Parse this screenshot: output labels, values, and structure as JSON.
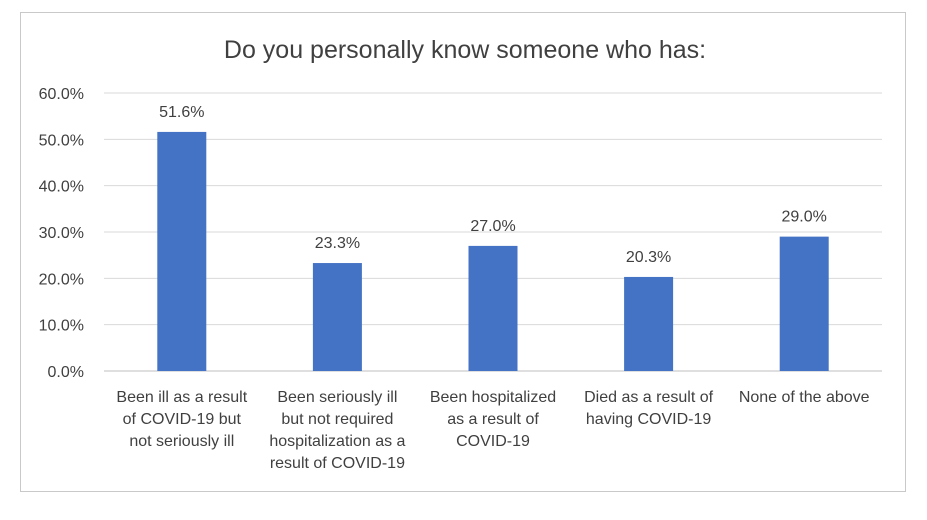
{
  "chart_data": {
    "type": "bar",
    "title": "Do you personally know someone who has:",
    "xlabel": "",
    "ylabel": "",
    "ylim": [
      0,
      60
    ],
    "yticks": [
      "0.0%",
      "10.0%",
      "20.0%",
      "30.0%",
      "40.0%",
      "50.0%",
      "60.0%"
    ],
    "grid": true,
    "legend": "none",
    "bar_color": "#4472C4",
    "categories": [
      [
        "Been ill as a result",
        "of COVID-19 but",
        "not seriously ill"
      ],
      [
        "Been seriously ill",
        "but not required",
        "hospitalization as a",
        "result of COVID-19"
      ],
      [
        "Been hospitalized",
        "as a result of",
        "COVID-19"
      ],
      [
        "Died as a result of",
        "having COVID-19"
      ],
      [
        "None of the above"
      ]
    ],
    "values": [
      51.6,
      23.3,
      27.0,
      20.3,
      29.0
    ],
    "data_labels": [
      "51.6%",
      "23.3%",
      "27.0%",
      "20.3%",
      "29.0%"
    ]
  }
}
